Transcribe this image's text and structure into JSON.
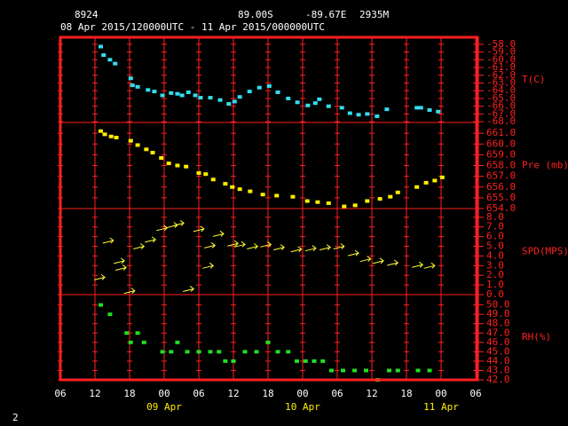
{
  "header": {
    "station": "8924",
    "lat": "89.00S",
    "lon": "-89.67E",
    "elev": "2935M",
    "period": "08 Apr 2015/120000UTC - 11 Apr 2015/000000UTC"
  },
  "footer": "2",
  "chart_data": [
    {
      "type": "scatter",
      "ylabel": "T(C)",
      "color": "#33ddee",
      "x": [
        7,
        7.5,
        8.6,
        9.5,
        12.2,
        12.5,
        13.4,
        15.2,
        16.3,
        17.7,
        19.2,
        20.3,
        21.1,
        22.2,
        23.4,
        24.3,
        26,
        27.7,
        29.2,
        30.2,
        31.1,
        32.8,
        34.5,
        36.2,
        37.7,
        39.5,
        41.1,
        42.9,
        44.2,
        44.9,
        46.5,
        48.8,
        50.2,
        51.7,
        53.2,
        54.9,
        56.6,
        61.8,
        62.5,
        64,
        65.5
      ],
      "values": [
        -58.3,
        -59.4,
        -60.0,
        -60.5,
        -62.4,
        -63.3,
        -63.5,
        -63.9,
        -64.1,
        -64.6,
        -64.3,
        -64.4,
        -64.6,
        -64.2,
        -64.6,
        -64.9,
        -64.9,
        -65.2,
        -65.7,
        -65.4,
        -64.8,
        -64.1,
        -63.6,
        -63.4,
        -64.2,
        -65.0,
        -65.5,
        -65.9,
        -65.6,
        -65.1,
        -66.0,
        -66.2,
        -66.9,
        -67.1,
        -67.0,
        -67.3,
        -66.4,
        -66.2,
        -66.2,
        -66.5,
        -66.7
      ],
      "ylim": [
        -68.1,
        -57.1
      ],
      "yticks": [
        {
          "value": -58,
          "label": "-58.0"
        },
        {
          "value": -59,
          "label": "-59.0"
        },
        {
          "value": -60,
          "label": "-60.0"
        },
        {
          "value": -61,
          "label": "-61.0"
        },
        {
          "value": -62,
          "label": "-62.0"
        },
        {
          "value": -63,
          "label": "-63.0"
        },
        {
          "value": -64,
          "label": "-64.0"
        },
        {
          "value": -65,
          "label": "-65.0"
        },
        {
          "value": -66,
          "label": "-66.0"
        },
        {
          "value": -67,
          "label": "-67.0"
        },
        {
          "value": -68,
          "label": "-68.0"
        }
      ]
    },
    {
      "type": "scatter",
      "ylabel": "Pre (mb)",
      "color": "#ffee00",
      "x": [
        7,
        7.7,
        8.8,
        9.7,
        12.2,
        13.4,
        14.9,
        16,
        17.5,
        18.8,
        20.3,
        21.8,
        24,
        25.2,
        26.5,
        28.6,
        29.8,
        31.1,
        32.9,
        35.1,
        37.5,
        40.3,
        42.8,
        44.6,
        46.5,
        49.2,
        51.1,
        53.2,
        55.4,
        57.2,
        58.5,
        61.8,
        63.4,
        64.9,
        66.2
      ],
      "values": [
        661.2,
        660.9,
        660.7,
        660.6,
        660.3,
        659.9,
        659.5,
        659.2,
        658.7,
        658.2,
        658.0,
        657.9,
        657.3,
        657.2,
        656.7,
        656.3,
        656.0,
        655.8,
        655.6,
        655.3,
        655.2,
        655.1,
        654.7,
        654.6,
        654.5,
        654.2,
        654.3,
        654.7,
        654.9,
        655.1,
        655.5,
        656.0,
        656.4,
        656.6,
        656.9
      ],
      "ylim": [
        654,
        662
      ],
      "yticks": [
        {
          "value": 654,
          "label": "654.0"
        },
        {
          "value": 655,
          "label": "655.0"
        },
        {
          "value": 656,
          "label": "656.0"
        },
        {
          "value": 657,
          "label": "657.0"
        },
        {
          "value": 658,
          "label": "658.0"
        },
        {
          "value": 659,
          "label": "659.0"
        },
        {
          "value": 660,
          "label": "660.0"
        },
        {
          "value": 661,
          "label": "661.0"
        }
      ]
    },
    {
      "type": "wind",
      "ylabel": "SPD(MPS)",
      "color": "#ffff33",
      "x": [
        7.7,
        9.2,
        11.1,
        11.4,
        12.9,
        14.5,
        16.5,
        18.5,
        20.3,
        21.4,
        23.1,
        24.9,
        26.5,
        26.8,
        28.3,
        30.8,
        32,
        34.2,
        36.5,
        38.8,
        41.8,
        44.3,
        46.8,
        49.2,
        51.7,
        53.8,
        56,
        58.5,
        62.8,
        64.9
      ],
      "values": [
        1.8,
        5.6,
        3.5,
        2.8,
        0.4,
        5.0,
        5.7,
        6.9,
        7.2,
        7.4,
        0.6,
        6.8,
        3.0,
        5.1,
        6.3,
        5.3,
        5.2,
        5.0,
        5.2,
        4.9,
        4.7,
        4.8,
        4.9,
        5.0,
        4.3,
        3.7,
        3.5,
        3.3,
        3.1,
        3.0
      ],
      "ylim": [
        0,
        8.9
      ],
      "yticks": [
        {
          "value": 0,
          "label": "0.0"
        },
        {
          "value": 1,
          "label": "1.0"
        },
        {
          "value": 2,
          "label": "2.0"
        },
        {
          "value": 3,
          "label": "3.0"
        },
        {
          "value": 4,
          "label": "4.0"
        },
        {
          "value": 5,
          "label": "5.0"
        },
        {
          "value": 6,
          "label": "6.0"
        },
        {
          "value": 7,
          "label": "7.0"
        },
        {
          "value": 8,
          "label": "8.0"
        }
      ]
    },
    {
      "type": "scatter",
      "ylabel": "RH(%)",
      "color": "#22dd22",
      "x": [
        7,
        8.6,
        11.5,
        12.2,
        13.4,
        14.5,
        17.7,
        19.2,
        20.3,
        22,
        24,
        26,
        27.5,
        28.6,
        30,
        32,
        34,
        36,
        37.7,
        39.5,
        41,
        42.5,
        44,
        45.5,
        47,
        49,
        51,
        55,
        53,
        57,
        58.5,
        62,
        64
      ],
      "values": [
        50,
        49,
        47,
        46,
        47,
        46,
        45,
        45,
        46,
        45,
        45,
        45,
        45,
        44,
        44,
        45,
        45,
        46,
        45,
        45,
        44,
        44,
        44,
        44,
        43,
        43,
        43,
        42,
        43,
        43,
        43,
        43,
        43
      ],
      "ylim": [
        42,
        51.1
      ],
      "yticks": [
        {
          "value": 42,
          "label": "42.0"
        },
        {
          "value": 43,
          "label": "43.0"
        },
        {
          "value": 44,
          "label": "44.0"
        },
        {
          "value": 45,
          "label": "45.0"
        },
        {
          "value": 46,
          "label": "46.0"
        },
        {
          "value": 47,
          "label": "47.0"
        },
        {
          "value": 48,
          "label": "48.0"
        },
        {
          "value": 49,
          "label": "49.0"
        },
        {
          "value": 50,
          "label": "50.0"
        }
      ],
      "xlim": [
        0,
        72
      ],
      "xticks": [
        {
          "value": 0,
          "label": "06"
        },
        {
          "value": 6,
          "label": "12"
        },
        {
          "value": 12,
          "label": "18"
        },
        {
          "value": 18,
          "label": "00"
        },
        {
          "value": 24,
          "label": "06"
        },
        {
          "value": 30,
          "label": "12"
        },
        {
          "value": 36,
          "label": "18"
        },
        {
          "value": 42,
          "label": "00"
        },
        {
          "value": 48,
          "label": "06"
        },
        {
          "value": 54,
          "label": "12"
        },
        {
          "value": 60,
          "label": "18"
        },
        {
          "value": 66,
          "label": "00"
        },
        {
          "value": 72,
          "label": "06"
        }
      ],
      "date_ticks": [
        {
          "value": 18,
          "label": "09 Apr"
        },
        {
          "value": 42,
          "label": "10 Apr"
        },
        {
          "value": 66,
          "label": "11 Apr"
        }
      ]
    }
  ]
}
